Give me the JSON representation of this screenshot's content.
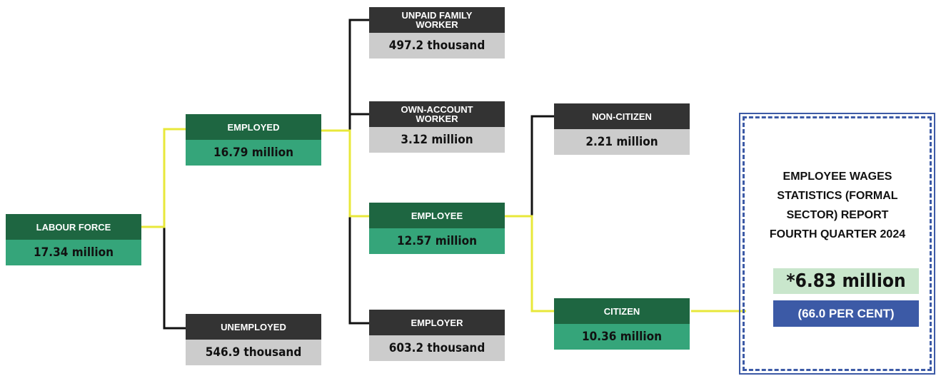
{
  "nodes": [
    {
      "label": "LABOUR FORCE",
      "value": "17.34 million"
    },
    {
      "label": "EMPLOYED",
      "value": "16.79 million"
    },
    {
      "label": "UNEMPLOYED",
      "value": "546.9 thousand"
    },
    {
      "label": "UNPAID FAMILY WORKER",
      "value": "497.2 thousand"
    },
    {
      "label": "OWN-ACCOUNT WORKER",
      "value": "3.12 million"
    },
    {
      "label": "EMPLOYEE",
      "value": "12.57 million"
    },
    {
      "label": "EMPLOYER",
      "value": "603.2 thousand"
    },
    {
      "label": "NON-CITIZEN",
      "value": "2.21 million"
    },
    {
      "label": "CITIZEN",
      "value": "10.36 million"
    }
  ],
  "report": {
    "title": "EMPLOYEE WAGES STATISTICS (FORMAL SECTOR) REPORT FOURTH QUARTER 2024",
    "value": "*6.83 million",
    "share": "(66.0 PER CENT)"
  }
}
